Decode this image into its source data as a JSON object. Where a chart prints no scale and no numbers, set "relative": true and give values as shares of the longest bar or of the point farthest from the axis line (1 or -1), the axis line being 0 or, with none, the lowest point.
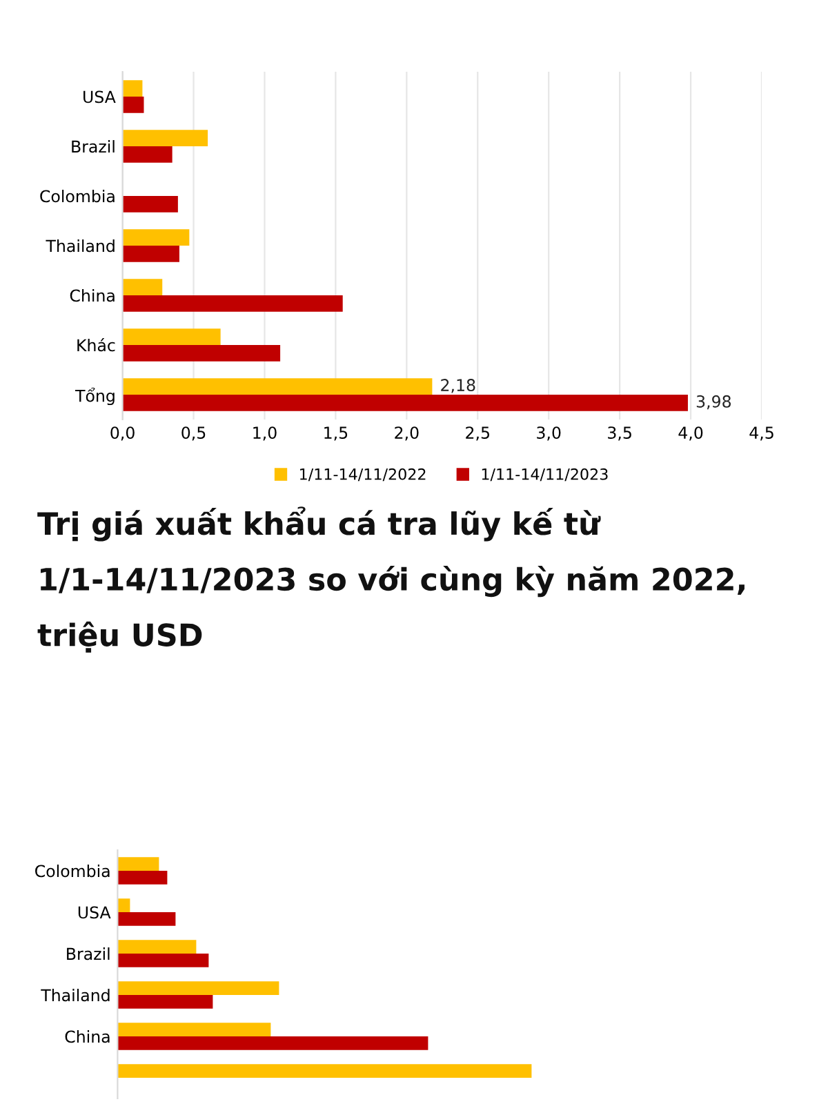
{
  "chart_data": [
    {
      "type": "bar",
      "orientation": "horizontal",
      "categories": [
        "USA",
        "Brazil",
        "Colombia",
        "Thailand",
        "China",
        "Khác",
        "Tổng"
      ],
      "series": [
        {
          "name": "1/11-14/11/2022",
          "color": "#ffc000",
          "values": [
            0.14,
            0.6,
            null,
            0.47,
            0.28,
            0.69,
            2.18
          ],
          "value_labels": [
            null,
            null,
            null,
            null,
            null,
            null,
            "2,18"
          ]
        },
        {
          "name": "1/11-14/11/2023",
          "color": "#c00000",
          "values": [
            0.15,
            0.35,
            0.39,
            0.4,
            1.55,
            1.11,
            3.98
          ],
          "value_labels": [
            null,
            null,
            null,
            null,
            null,
            null,
            "3,98"
          ]
        }
      ],
      "xlim": [
        0,
        4.5
      ],
      "xticks": [
        {
          "value": 0,
          "label": "0,0"
        },
        {
          "value": 0.5,
          "label": "0,5"
        },
        {
          "value": 1,
          "label": "1,0"
        },
        {
          "value": 1.5,
          "label": "1,5"
        },
        {
          "value": 2,
          "label": "2,0"
        },
        {
          "value": 2.5,
          "label": "2,5"
        },
        {
          "value": 3,
          "label": "3,0"
        },
        {
          "value": 3.5,
          "label": "3,5"
        },
        {
          "value": 4,
          "label": "4,0"
        },
        {
          "value": 4.5,
          "label": "4,5"
        }
      ],
      "grid": "x",
      "legend": "bottom"
    },
    {
      "type": "bar",
      "orientation": "horizontal",
      "relative": true,
      "title": "Trị giá xuất khẩu cá tra lũy kế từ 1/1-14/11/2023 so với cùng kỳ năm 2022, triệu USD",
      "categories": [
        "Colombia",
        "USA",
        "Brazil",
        "Thailand",
        "China",
        null
      ],
      "series": [
        {
          "color": "#ffc000",
          "values": [
            0.1,
            0.03,
            0.19,
            0.39,
            0.37,
            1
          ]
        },
        {
          "color": "#c00000",
          "values": [
            0.12,
            0.14,
            0.22,
            0.23,
            0.75,
            null
          ]
        }
      ]
    }
  ]
}
